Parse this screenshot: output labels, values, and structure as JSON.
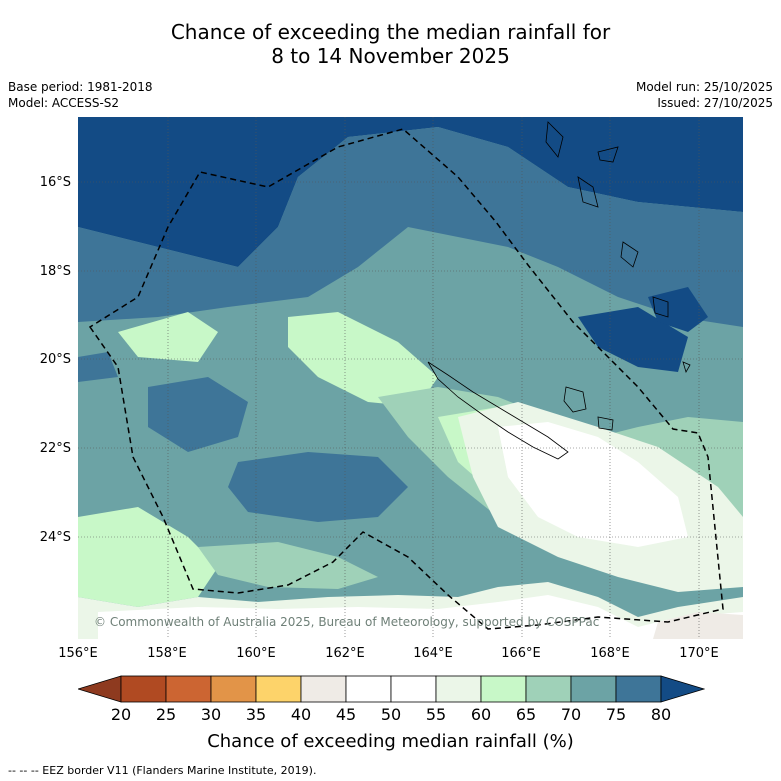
{
  "title": {
    "line1": "Chance of exceeding the median rainfall for",
    "line2": "8 to 14 November 2025"
  },
  "meta": {
    "base_period": "Base period: 1981-2018",
    "model": "Model: ACCESS-S2",
    "model_run": "Model run: 25/10/2025",
    "issued": "Issued: 27/10/2025"
  },
  "map": {
    "region": "New Caledonia / Vanuatu region, South-West Pacific",
    "lat_ticks": [
      "16°S",
      "18°S",
      "20°S",
      "22°S",
      "24°S"
    ],
    "lon_ticks": [
      "156°E",
      "158°E",
      "160°E",
      "162°E",
      "164°E",
      "166°E",
      "168°E",
      "170°E"
    ],
    "copyright": "© Commonwealth of Australia 2025, Bureau of Meteorology, supported by COSPPac"
  },
  "colorbar": {
    "labels": [
      "20",
      "25",
      "30",
      "35",
      "40",
      "45",
      "50",
      "55",
      "60",
      "65",
      "70",
      "75",
      "80"
    ],
    "colors": {
      "below_20": "#8e3a1f",
      "20_25": "#b04a22",
      "25_30": "#cc6532",
      "30_35": "#e29448",
      "35_40": "#fdd36a",
      "40_45": "#efebe6",
      "45_50": "#ffffff",
      "50_55": "#ffffff",
      "55_60": "#ebf6e8",
      "60_65": "#c8f8c8",
      "65_70": "#9fd1b8",
      "70_75": "#6ca3a5",
      "75_80": "#3e7598",
      "above_80": "#134b85"
    },
    "title": "Chance of exceeding median rainfall (%)"
  },
  "legend": {
    "eez": "--  --  -- EEZ border V11 (Flanders Marine Institute, 2019)."
  }
}
